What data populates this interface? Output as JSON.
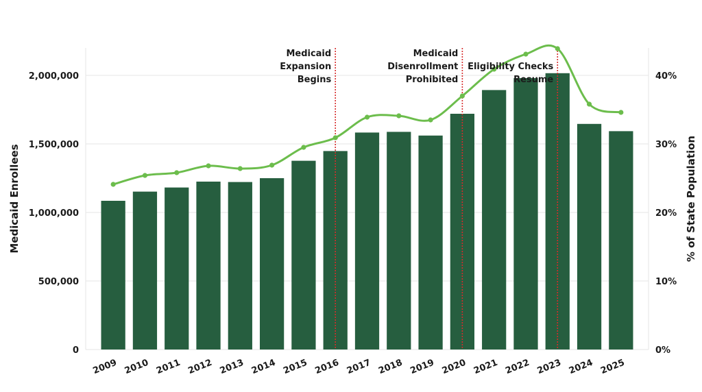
{
  "chart_data": {
    "type": "bar",
    "categories": [
      "2009",
      "2010",
      "2011",
      "2012",
      "2013",
      "2014",
      "2015",
      "2016",
      "2017",
      "2018",
      "2019",
      "2020",
      "2021",
      "2022",
      "2023",
      "2024",
      "2025"
    ],
    "series": [
      {
        "type": "bar",
        "axis": "left",
        "values": [
          1085000,
          1152000,
          1182000,
          1225000,
          1222000,
          1250000,
          1377000,
          1448000,
          1583000,
          1588000,
          1561000,
          1720000,
          1893000,
          1980000,
          2016000,
          1646000,
          1593000
        ]
      },
      {
        "type": "line",
        "axis": "right",
        "values": [
          24.1,
          25.4,
          25.8,
          26.8,
          26.4,
          26.9,
          29.5,
          30.9,
          33.9,
          34.1,
          33.5,
          37.0,
          40.9,
          43.1,
          43.9,
          35.8,
          34.6
        ]
      }
    ],
    "ylabel": "Medicaid Enrollees",
    "ylabel_right": "% of State Population",
    "ylim": [
      0,
      2200000
    ],
    "ylim_right": [
      0,
      44
    ],
    "yticks": [
      0,
      500000,
      1000000,
      1500000,
      2000000
    ],
    "yticks_labels": [
      "0",
      "500,000",
      "1,000,000",
      "1,500,000",
      "2,000,000"
    ],
    "yticks_right": [
      0,
      10,
      20,
      30,
      40
    ],
    "yticks_right_labels": [
      "0%",
      "10%",
      "20%",
      "30%",
      "40%"
    ],
    "grid": true,
    "annotations": [
      {
        "x": "2016",
        "lines": [
          "Medicaid",
          "Expansion",
          "Begins"
        ]
      },
      {
        "x": "2020",
        "lines": [
          "Medicaid",
          "Disenrollment",
          "Prohibited"
        ]
      },
      {
        "x": "2023",
        "lines": [
          "Eligibility Checks",
          "Resume"
        ]
      }
    ],
    "colors": {
      "bar": "#265e3f",
      "line": "#6cbd4c",
      "annotation_line": "#d62b2b",
      "grid": "#e6e6e6"
    }
  }
}
